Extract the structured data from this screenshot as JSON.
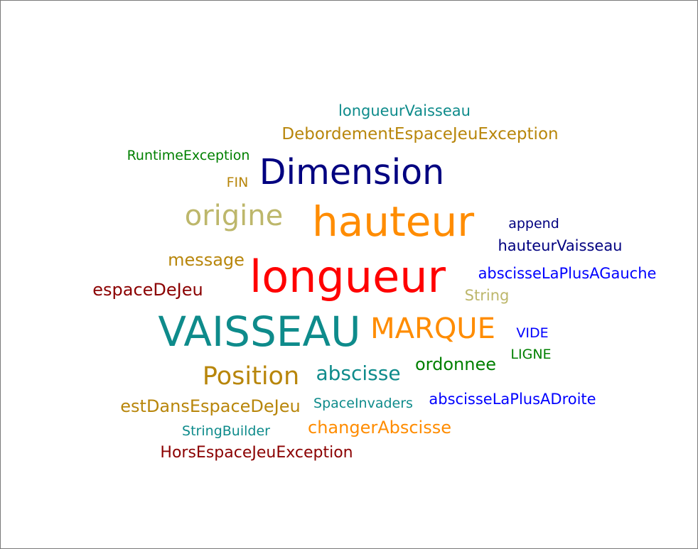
{
  "words": [
    {
      "text": "longueurVaisseau",
      "color": "#0e8b8b"
    },
    {
      "text": "DebordementEspaceJeuException",
      "color": "#b8860b"
    },
    {
      "text": "RuntimeException",
      "color": "#008000"
    },
    {
      "text": "Dimension",
      "color": "#000080"
    },
    {
      "text": "FIN",
      "color": "#b8860b"
    },
    {
      "text": "origine",
      "color": "#bdb76b"
    },
    {
      "text": "hauteur",
      "color": "#ff8c00"
    },
    {
      "text": "append",
      "color": "#000080"
    },
    {
      "text": "hauteurVaisseau",
      "color": "#000080"
    },
    {
      "text": "message",
      "color": "#b8860b"
    },
    {
      "text": "longueur",
      "color": "#ff0000"
    },
    {
      "text": "abscisseLaPlusAGauche",
      "color": "#0000ff"
    },
    {
      "text": "espaceDeJeu",
      "color": "#8b0000"
    },
    {
      "text": "String",
      "color": "#bdb76b"
    },
    {
      "text": "VAISSEAU",
      "color": "#0e8b8b"
    },
    {
      "text": "MARQUE",
      "color": "#ff8c00"
    },
    {
      "text": "VIDE",
      "color": "#0000ff"
    },
    {
      "text": "LIGNE",
      "color": "#008000"
    },
    {
      "text": "ordonnee",
      "color": "#008000"
    },
    {
      "text": "Position",
      "color": "#b8860b"
    },
    {
      "text": "abscisse",
      "color": "#0e8b8b"
    },
    {
      "text": "estDansEspaceDeJeu",
      "color": "#b8860b"
    },
    {
      "text": "SpaceInvaders",
      "color": "#0e8b8b"
    },
    {
      "text": "abscisseLaPlusADroite",
      "color": "#0000ff"
    },
    {
      "text": "StringBuilder",
      "color": "#0e8b8b"
    },
    {
      "text": "changerAbscisse",
      "color": "#ff8c00"
    },
    {
      "text": "HorsEspaceJeuException",
      "color": "#8b0000"
    }
  ]
}
